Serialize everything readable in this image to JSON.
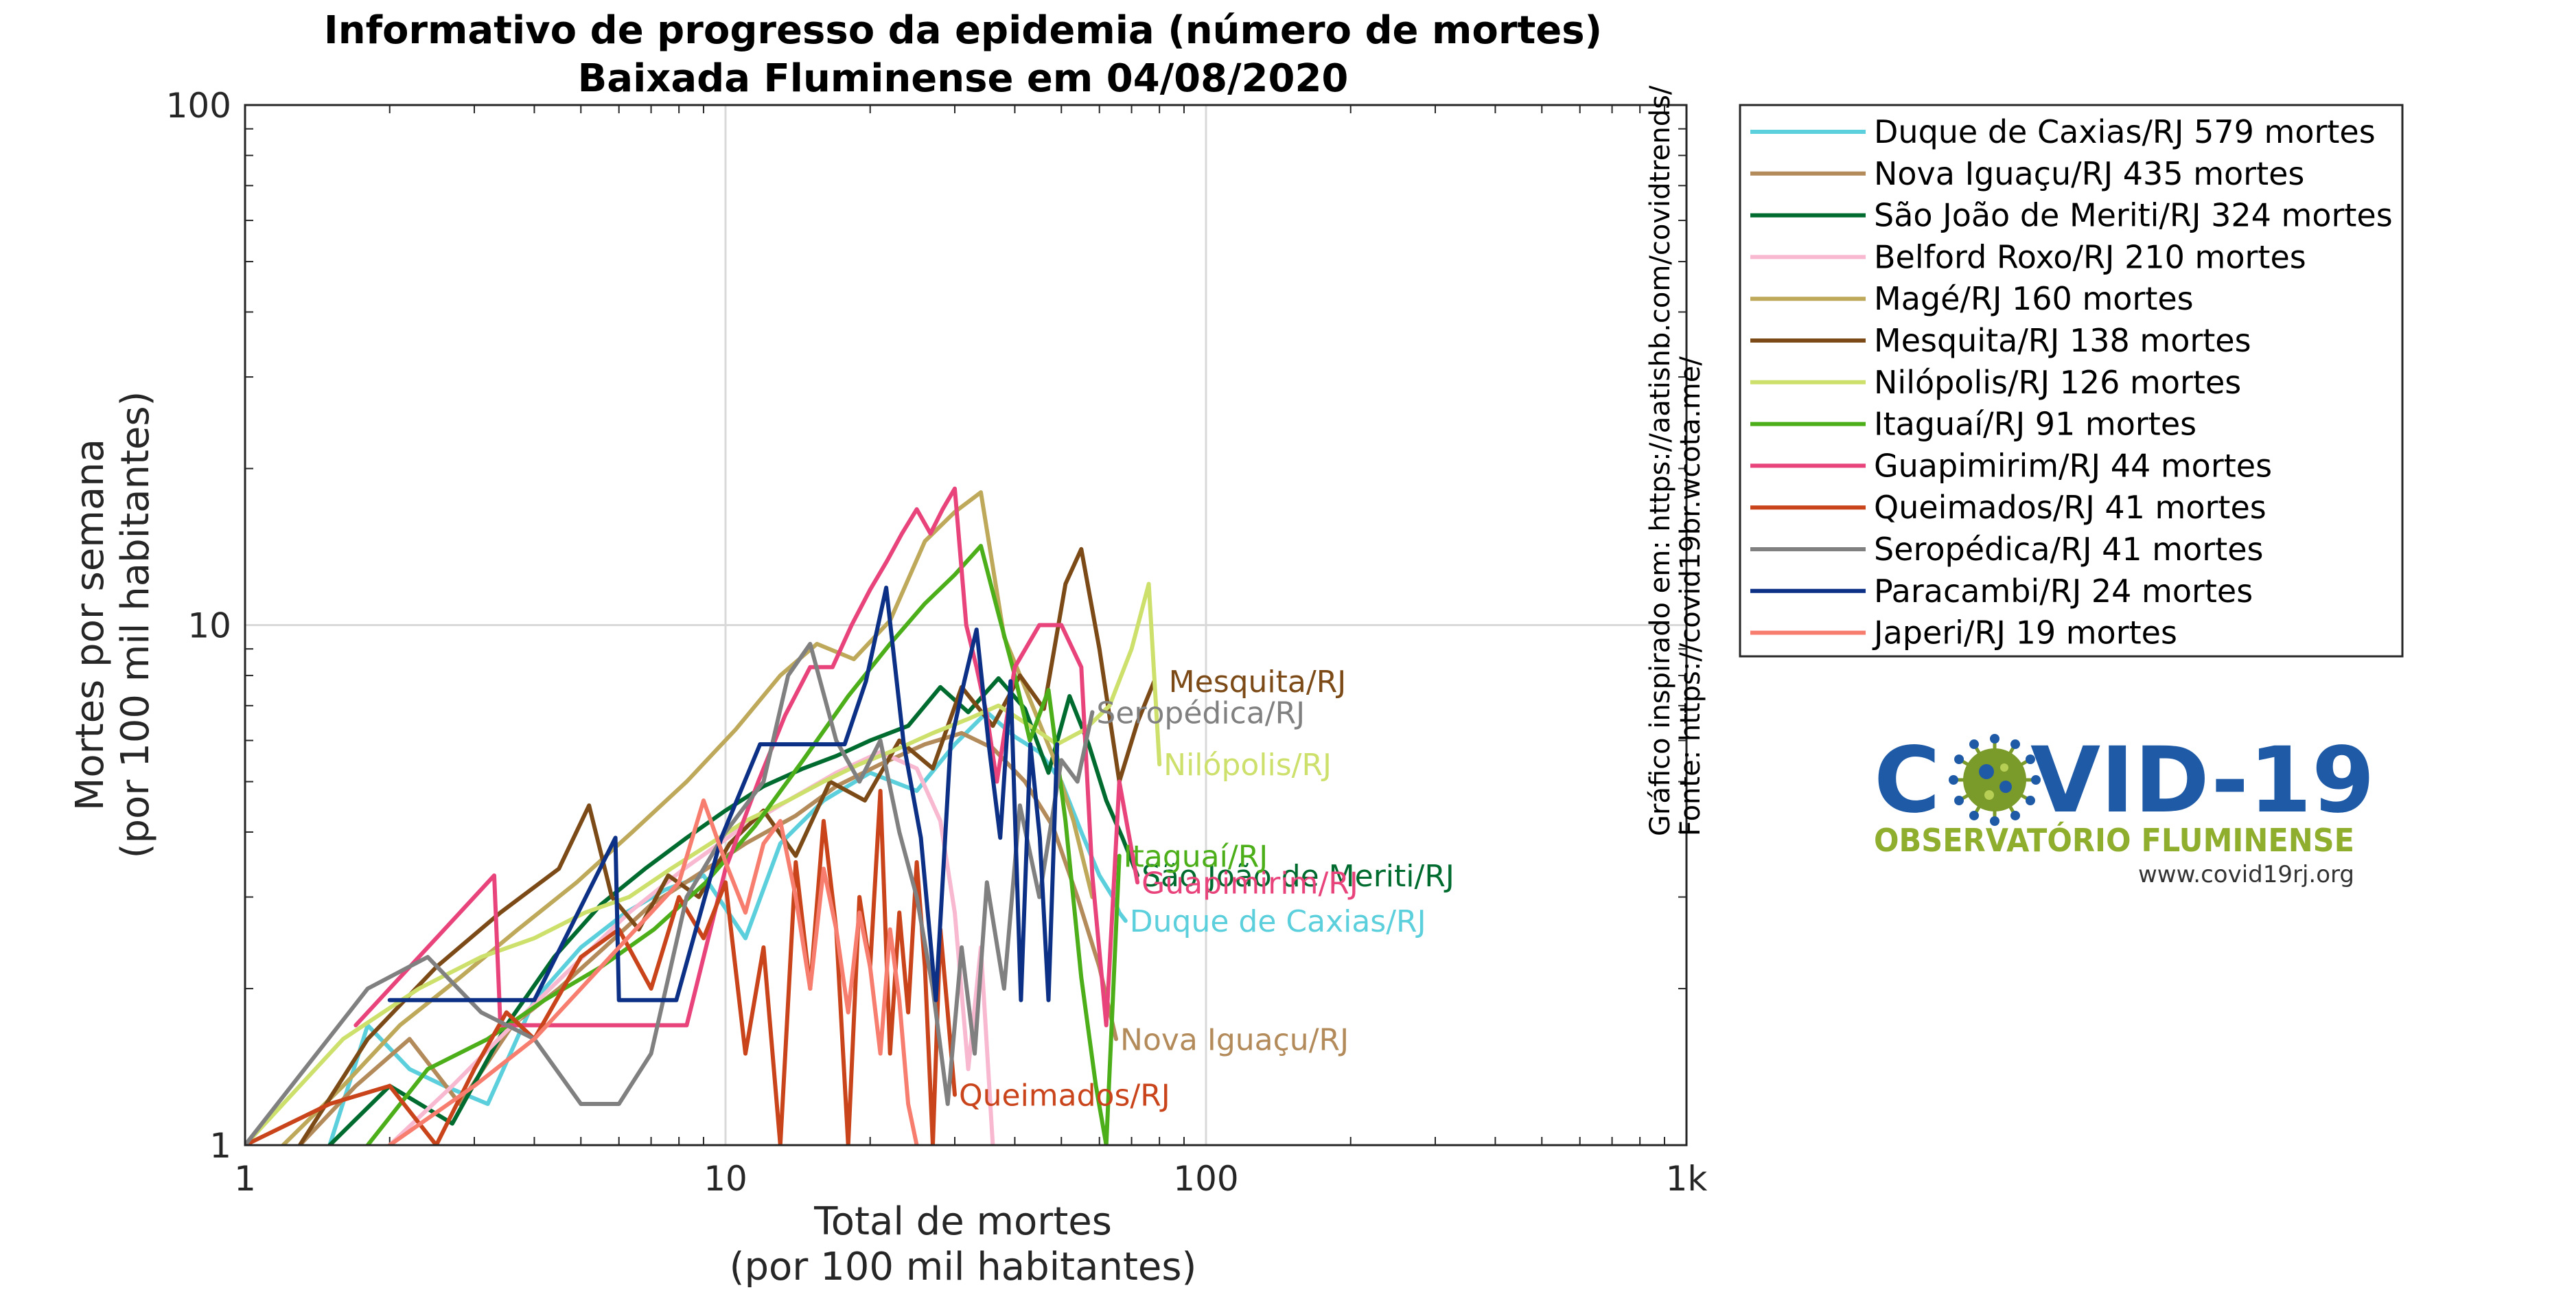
{
  "chart_data": {
    "type": "line",
    "title": "Informativo de progresso da epidemia (número de mortes)",
    "subtitle": "Baixada Fluminense em 04/08/2020",
    "xlabel": "Total de mortes",
    "xlabel2": "(por 100 mil habitantes)",
    "ylabel": "Mortes por semana",
    "ylabel2": "(por 100 mil habitantes)",
    "x_scale": "log",
    "y_scale": "log",
    "xlim": [
      1,
      1000
    ],
    "ylim": [
      1,
      100
    ],
    "grid": true,
    "legend_position": "outside-top-right",
    "x_ticks": [
      {
        "value": 1,
        "label": "1"
      },
      {
        "value": 10,
        "label": "10"
      },
      {
        "value": 100,
        "label": "100"
      },
      {
        "value": 1000,
        "label": "1k"
      }
    ],
    "y_ticks": [
      {
        "value": 1,
        "label": "1"
      },
      {
        "value": 10,
        "label": "10"
      },
      {
        "value": 100,
        "label": "100"
      }
    ],
    "series": [
      {
        "name": "Duque de Caxias/RJ",
        "legend": "Duque de Caxias/RJ  579 mortes",
        "label": "Duque de Caxias/RJ",
        "label_x": 68,
        "label_y": 2.7,
        "color": "#5bcfdb",
        "x": [
          1.5,
          1.8,
          2.2,
          2.6,
          3.2,
          4.0,
          5.0,
          6.2,
          7.5,
          9.0,
          11,
          13,
          16,
          20,
          25,
          30,
          35,
          40,
          45,
          50,
          55,
          60,
          64,
          66,
          68
        ],
        "y": [
          1.0,
          1.7,
          1.4,
          1.3,
          1.2,
          1.9,
          2.4,
          2.8,
          3.1,
          3.3,
          2.5,
          3.8,
          4.6,
          5.2,
          4.8,
          5.9,
          6.8,
          6.1,
          5.7,
          5.0,
          4.0,
          3.3,
          3.0,
          2.8,
          2.7
        ]
      },
      {
        "name": "Nova Iguaçu/RJ",
        "legend": "Nova Iguaçu/RJ  435 mortes",
        "label": "Nova Iguaçu/RJ",
        "label_x": 65,
        "label_y": 1.6,
        "color": "#b38a5a",
        "x": [
          1.3,
          1.7,
          2.2,
          2.8,
          3.6,
          4.5,
          5.6,
          7.0,
          8.7,
          11,
          14,
          17,
          21,
          26,
          31,
          36,
          42,
          48,
          54,
          60,
          65
        ],
        "y": [
          1.0,
          1.3,
          1.6,
          1.2,
          1.7,
          2.0,
          2.4,
          2.9,
          3.3,
          3.8,
          4.3,
          4.9,
          5.4,
          5.9,
          6.2,
          5.8,
          5.0,
          4.1,
          3.0,
          2.2,
          1.6
        ]
      },
      {
        "name": "São João de Meriti/RJ",
        "legend": "São João de Meriti/RJ  324 mortes",
        "label": "São João de Meriti/RJ",
        "label_x": 72,
        "label_y": 3.3,
        "color": "#006b2f",
        "x": [
          1.5,
          2.0,
          2.7,
          3.5,
          4.4,
          5.5,
          6.8,
          8.3,
          10,
          12,
          14.5,
          17,
          20,
          24,
          28,
          32,
          37,
          42,
          47,
          52,
          57,
          62,
          67,
          72
        ],
        "y": [
          1.0,
          1.3,
          1.1,
          1.7,
          2.3,
          2.9,
          3.4,
          3.9,
          4.4,
          4.9,
          5.3,
          5.6,
          6.0,
          6.4,
          7.6,
          6.8,
          7.9,
          6.9,
          5.2,
          7.3,
          5.9,
          4.6,
          3.9,
          3.3
        ]
      },
      {
        "name": "Belford Roxo/RJ",
        "legend": "Belford Roxo/RJ  210 mortes",
        "label": "",
        "label_x": 0,
        "label_y": 0,
        "color": "#f7b8d0",
        "x": [
          2.0,
          2.7,
          3.6,
          4.8,
          6.3,
          8.2,
          10.5,
          13.5,
          17,
          21,
          25,
          28,
          30,
          32,
          34,
          36
        ],
        "y": [
          1.0,
          1.3,
          1.7,
          2.2,
          2.8,
          3.4,
          4.0,
          4.6,
          5.2,
          5.7,
          5.3,
          4.2,
          2.8,
          1.4,
          2.4,
          1.0
        ]
      },
      {
        "name": "Magé/RJ",
        "legend": "Magé/RJ  160 mortes",
        "label": "",
        "label_x": 0,
        "label_y": 0,
        "color": "#bea85a",
        "x": [
          1.2,
          1.6,
          2.1,
          2.8,
          3.7,
          4.9,
          6.4,
          8.3,
          10.5,
          13,
          15.5,
          18.5,
          22,
          26,
          30,
          34,
          38,
          43,
          48,
          53,
          58
        ],
        "y": [
          1.0,
          1.3,
          1.7,
          2.1,
          2.6,
          3.2,
          4.0,
          5.0,
          6.3,
          8.0,
          9.2,
          8.6,
          10.2,
          14.5,
          16.5,
          18.0,
          9.5,
          7.2,
          5.6,
          4.2,
          3.0
        ]
      },
      {
        "name": "Mesquita/RJ",
        "legend": "Mesquita/RJ  138 mortes",
        "label": "Mesquita/RJ",
        "label_x": 82,
        "label_y": 7.8,
        "color": "#7c4a16",
        "x": [
          1.3,
          1.8,
          2.5,
          3.4,
          4.5,
          5.2,
          5.8,
          6.6,
          7.6,
          8.8,
          10.2,
          12,
          14,
          16.5,
          19.5,
          23,
          27,
          31,
          36,
          41,
          46,
          51,
          55,
          60,
          66,
          72,
          78
        ],
        "y": [
          1.0,
          1.6,
          2.2,
          2.8,
          3.4,
          4.5,
          3.0,
          2.6,
          3.3,
          3.0,
          3.8,
          4.4,
          3.6,
          5.0,
          4.6,
          6.0,
          5.3,
          7.6,
          6.4,
          8.0,
          6.9,
          12.0,
          14.0,
          9.0,
          5.0,
          6.5,
          7.8
        ]
      },
      {
        "name": "Nilópolis/RJ",
        "legend": "Nilópolis/RJ  126 mortes",
        "label": "Nilópolis/RJ",
        "label_x": 80,
        "label_y": 5.4,
        "color": "#cde06b",
        "x": [
          1.0,
          1.6,
          2.3,
          3.1,
          4.0,
          5.1,
          6.3,
          7.7,
          9.3,
          11,
          13.5,
          16,
          19,
          23,
          27,
          32,
          37,
          43,
          49,
          56,
          63,
          70,
          76,
          80
        ],
        "y": [
          1.0,
          1.6,
          2.0,
          2.3,
          2.5,
          2.8,
          3.0,
          3.4,
          3.8,
          4.2,
          4.6,
          5.0,
          5.4,
          5.8,
          6.2,
          6.6,
          7.0,
          6.4,
          5.9,
          6.3,
          7.0,
          9.0,
          12.0,
          5.4
        ]
      },
      {
        "name": "Itaguaí/RJ",
        "legend": "Itaguaí/RJ  91 mortes",
        "label": "Itaguaí/RJ",
        "label_x": 66,
        "label_y": 3.6,
        "color": "#4caf1a",
        "x": [
          1.8,
          2.4,
          3.2,
          4.2,
          5.5,
          7.1,
          9.1,
          11.5,
          14.5,
          18,
          22,
          26,
          30,
          34,
          37,
          40,
          43,
          47,
          51,
          55,
          59,
          62,
          66
        ],
        "y": [
          1.0,
          1.4,
          1.6,
          1.9,
          2.2,
          2.6,
          3.2,
          4.1,
          5.5,
          7.3,
          9.2,
          11.0,
          12.5,
          14.2,
          10.5,
          8.0,
          6.0,
          7.5,
          4.2,
          2.1,
          1.3,
          1.0,
          3.6
        ]
      },
      {
        "name": "Guapimirim/RJ",
        "legend": "Guapimirim/RJ  44 mortes",
        "label": "Guapimirim/RJ",
        "label_x": 72,
        "label_y": 3.2,
        "color": "#e8437a",
        "x": [
          1.7,
          3.3,
          3.4,
          5.0,
          6.7,
          8.3,
          10,
          11.7,
          13.3,
          15,
          16.7,
          18.3,
          20,
          21.7,
          23.3,
          25,
          26.7,
          28.3,
          30,
          31.7,
          33.3,
          35,
          36.7,
          40,
          45,
          50,
          55,
          58,
          62,
          66,
          72
        ],
        "y": [
          1.7,
          3.3,
          1.7,
          1.7,
          1.7,
          1.7,
          3.4,
          5.0,
          6.7,
          8.3,
          8.3,
          10.0,
          11.7,
          13.3,
          15.0,
          16.7,
          15.0,
          16.7,
          18.3,
          10.0,
          8.3,
          6.7,
          5.0,
          8.3,
          10.0,
          10.0,
          8.3,
          3.3,
          1.7,
          5.0,
          3.2
        ]
      },
      {
        "name": "Queimados/RJ",
        "legend": "Queimados/RJ  41 mortes",
        "label": "Queimados/RJ",
        "label_x": 30,
        "label_y": 1.25,
        "color": "#c9441a",
        "x": [
          1.0,
          1.5,
          2.0,
          2.5,
          3.0,
          3.5,
          4.0,
          5.0,
          6.0,
          7.0,
          8.0,
          9.0,
          10.0,
          11,
          12,
          13,
          14,
          15,
          16,
          17,
          18,
          19,
          20,
          21,
          22,
          23,
          24,
          25,
          26,
          27,
          28,
          29,
          30
        ],
        "y": [
          1.0,
          1.2,
          1.3,
          1.0,
          1.4,
          1.8,
          1.6,
          2.3,
          2.6,
          2.0,
          3.0,
          2.5,
          3.2,
          1.5,
          2.4,
          1.0,
          3.5,
          2.0,
          4.2,
          2.6,
          1.0,
          3.0,
          2.2,
          4.8,
          1.5,
          2.8,
          1.8,
          3.5,
          2.2,
          1.0,
          2.6,
          1.8,
          1.25
        ]
      },
      {
        "name": "Seropédica/RJ",
        "legend": "Seropédica/RJ  41 mortes",
        "label": "Seropédica/RJ",
        "label_x": 58,
        "label_y": 6.8,
        "color": "#808080",
        "x": [
          1.0,
          1.8,
          2.4,
          3.1,
          4.0,
          5.0,
          6.0,
          7.0,
          8.3,
          10,
          12,
          13.5,
          15,
          17,
          19,
          21,
          23,
          25,
          27,
          29,
          31,
          33,
          35,
          38,
          41,
          45,
          50,
          54,
          58
        ],
        "y": [
          1.0,
          2.0,
          2.3,
          1.8,
          1.6,
          1.2,
          1.2,
          1.5,
          3.0,
          4.0,
          5.0,
          8.0,
          9.2,
          6.0,
          5.0,
          6.0,
          4.0,
          3.0,
          2.0,
          1.2,
          2.4,
          1.5,
          3.2,
          2.0,
          4.5,
          3.0,
          5.5,
          5.0,
          6.8
        ]
      },
      {
        "name": "Paracambi/RJ",
        "legend": "Paracambi/RJ  24 mortes",
        "label": "",
        "label_x": 0,
        "label_y": 0,
        "color": "#0b3085",
        "x": [
          2.0,
          3.9,
          4.0,
          5.9,
          6.0,
          7.9,
          9.8,
          11.8,
          13.7,
          15.7,
          17.7,
          19.6,
          21.6,
          23.5,
          25.5,
          27.4,
          29.4,
          31.4,
          33.3,
          35.3,
          37.3,
          39.2,
          41.2,
          43.1,
          45.1,
          47,
          49
        ],
        "y": [
          1.9,
          1.9,
          1.9,
          3.9,
          1.9,
          1.9,
          3.9,
          5.9,
          5.9,
          5.9,
          5.9,
          7.8,
          11.8,
          5.9,
          3.9,
          1.9,
          5.9,
          7.8,
          9.8,
          5.9,
          3.9,
          7.8,
          1.9,
          5.9,
          3.9,
          1.9,
          5.9
        ]
      },
      {
        "name": "Japeri/RJ",
        "legend": "Japeri/RJ  19 mortes",
        "label": "",
        "label_x": 0,
        "label_y": 0,
        "color": "#f77e6f",
        "x": [
          2.0,
          3.0,
          4.0,
          5.0,
          6.0,
          7.0,
          8.0,
          9.0,
          10,
          11,
          12,
          13,
          14,
          15,
          16,
          17,
          18,
          19,
          20,
          21,
          22,
          23,
          24,
          25
        ],
        "y": [
          1.0,
          1.3,
          1.6,
          2.0,
          2.4,
          2.8,
          3.2,
          4.6,
          3.5,
          2.8,
          3.8,
          4.2,
          3.0,
          2.0,
          3.4,
          2.6,
          1.8,
          2.8,
          2.2,
          1.5,
          2.6,
          1.9,
          1.2,
          1.0
        ]
      }
    ]
  },
  "side_note": {
    "line1": "Gráfico inspirado em: https://aatishb.com/covidtrends/",
    "line2": "Fonte: https://covid19br.wcota.me/"
  },
  "logo": {
    "word_left": "C",
    "word_right": "VID-19",
    "tagline": "OBSERVATÓRIO FLUMINENSE",
    "url": "www.covid19rj.org",
    "color_primary": "#1f5aa6",
    "color_secondary": "#8fae2e"
  }
}
